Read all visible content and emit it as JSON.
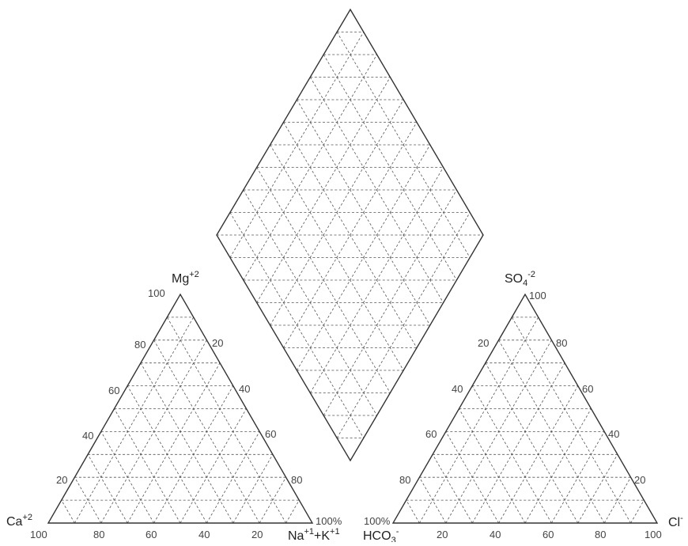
{
  "diagram": {
    "type": "piper-diagram",
    "colors": {
      "outline": "#333333",
      "grid": "#555555",
      "text": "#222222",
      "tick": "#444444"
    },
    "cation_triangle": {
      "top_label": {
        "base": "Mg",
        "sup": "+2"
      },
      "left_label": {
        "base": "Ca",
        "sup": "+2"
      },
      "right_label": {
        "base1": "Na",
        "sup1": "+1",
        "join": "+K",
        "sup2": "+1"
      },
      "left_ticks": [
        "20",
        "40",
        "60",
        "80",
        "100"
      ],
      "right_ticks": [
        "20",
        "40",
        "60",
        "80"
      ],
      "right_end_tick": "100%",
      "bottom_ticks": [
        "100",
        "80",
        "60",
        "40",
        "20"
      ]
    },
    "anion_triangle": {
      "top_label": {
        "base": "SO",
        "sub": "4",
        "sup": "-2"
      },
      "left_label": {
        "base": "HCO",
        "sub": "3",
        "sup": "-"
      },
      "right_label": {
        "base": "Cl",
        "sup": "-"
      },
      "left_ticks": [
        "20",
        "40",
        "60",
        "80"
      ],
      "left_end_tick": "100%",
      "right_ticks": [
        "100",
        "80",
        "60",
        "40",
        "20"
      ],
      "bottom_ticks": [
        "20",
        "40",
        "60",
        "80",
        "100"
      ]
    },
    "diamond": {
      "grid_divisions": 10
    }
  }
}
